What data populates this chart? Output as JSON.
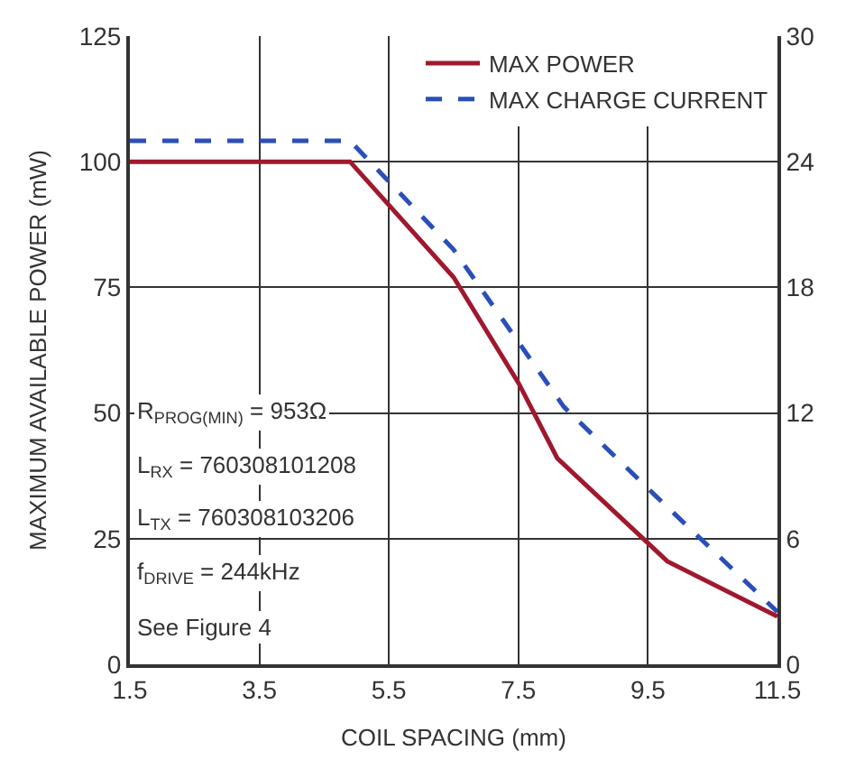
{
  "chart_data": {
    "type": "line",
    "xlabel": "COIL SPACING (mm)",
    "ylabel": "MAXIMUM AVAILABLE POWER (mW)",
    "xlim": [
      1.5,
      11.5
    ],
    "xticks": [
      1.5,
      3.5,
      5.5,
      7.5,
      9.5,
      11.5
    ],
    "ylim": [
      0,
      125
    ],
    "yticks": [
      0,
      25,
      50,
      75,
      100,
      125
    ],
    "y2lim": [
      0,
      30
    ],
    "y2ticks": [
      0,
      6,
      12,
      18,
      24,
      30
    ],
    "grid": true,
    "legend": "top right",
    "series": [
      {
        "name": "MAX POWER",
        "color": "#a0182e",
        "line_style": "solid",
        "x": [
          1.5,
          4.9,
          6.5,
          7.5,
          8.1,
          9.8,
          11.5
        ],
        "values": [
          100,
          100,
          77,
          56,
          41,
          20.5,
          9.5
        ]
      },
      {
        "name": "MAX CHARGE CURRENT",
        "color": "#2a4fb8",
        "line_style": "dashed",
        "axis": "y2",
        "x": [
          1.5,
          4.9,
          6.5,
          8.2,
          9.6,
          11.5
        ],
        "values": [
          25,
          25,
          19.8,
          12.3,
          8.1,
          2.5
        ]
      }
    ],
    "annotations": [
      "R$_{PROG(MIN)}$ = 953Ω",
      "L$_{RX}$ = 760308101208",
      "L$_{TX}$ = 760308103206",
      "f$_{DRIVE}$ = 244kHz",
      "See Figure 4"
    ]
  }
}
